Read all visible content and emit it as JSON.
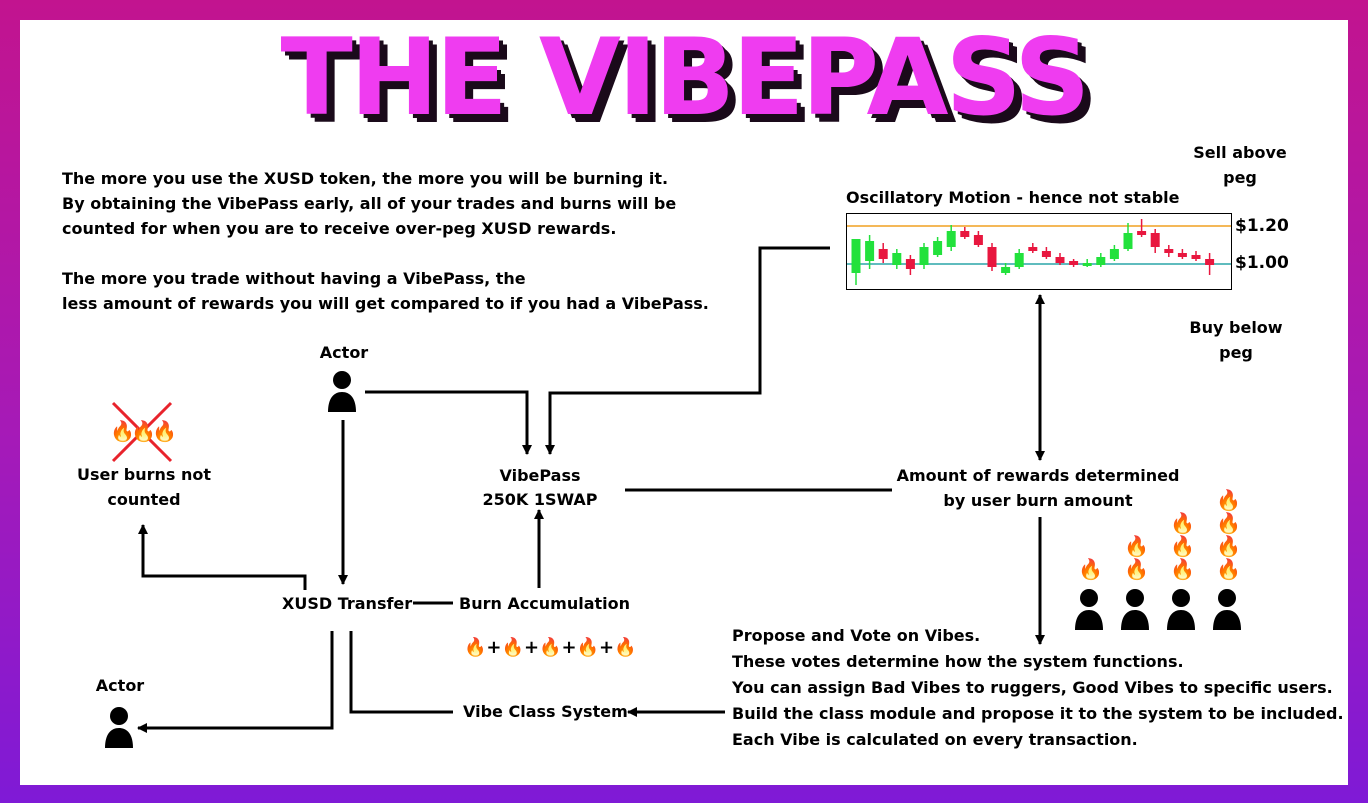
{
  "title": "THE VIBEPASS",
  "intro": {
    "lines": [
      "The more you use the XUSD token, the more you will be burning it.",
      "By obtaining the VibePass early, all of your trades and burns will be",
      "counted for when you are to receive over-peg XUSD rewards.",
      "The more you trade without having a VibePass, the",
      "less amount of rewards you will get compared to if you had a VibePass."
    ]
  },
  "chart": {
    "title": "Oscillatory Motion - hence not stable",
    "upper_label": "$1.20",
    "lower_label": "$1.00",
    "sell_label": [
      "Sell above",
      "peg"
    ],
    "buy_label": [
      "Buy below",
      "peg"
    ],
    "up_color": "#22e13c",
    "down_color": "#e8173f",
    "upper_line_color": "#f0a020",
    "lower_line_color": "#2aa6a8"
  },
  "nodes": {
    "actor_top": "Actor",
    "actor_bottom": "Actor",
    "user_burns": [
      "User burns not",
      "counted"
    ],
    "vibepass": [
      "VibePass",
      "250K 1SWAP"
    ],
    "rewards": [
      "Amount of rewards determined",
      "by user burn amount"
    ],
    "xusd_transfer": "XUSD Transfer",
    "burn_accumulation": "Burn Accumulation",
    "vibe_class_system": "Vibe Class System"
  },
  "burn_formula": [
    "🔥",
    "+",
    "🔥",
    "+",
    "🔥",
    "+",
    "🔥",
    "+",
    "🔥"
  ],
  "fire_glyph": "🔥",
  "burn_levels": [
    1,
    2,
    3,
    4
  ],
  "vote": {
    "lines": [
      "Propose and Vote on Vibes.",
      "These votes determine how the system functions.",
      "You can assign Bad Vibes to ruggers, Good Vibes to specific users.",
      "Build the class module and propose it to the system to be included.",
      "Each Vibe is calculated on every transaction."
    ]
  },
  "colors": {
    "title": "#ef3cf0",
    "title_shadow": "#1a0a1a",
    "cross": "#e8232c",
    "frame_top": "#c2148f",
    "frame_bottom": "#7f1ad6"
  },
  "icons": [
    "person-icon",
    "fire-icon",
    "cross-icon",
    "arrow-icon"
  ]
}
